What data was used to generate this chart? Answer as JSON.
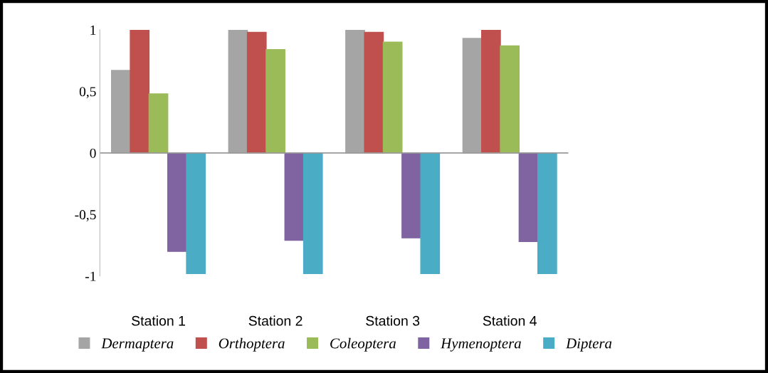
{
  "chart_data": {
    "type": "bar",
    "categories": [
      "Station 1",
      "Station 2",
      "Station 3",
      "Station 4"
    ],
    "series": [
      {
        "name": "Dermaptera",
        "color": "#a5a5a5",
        "values": [
          0.67,
          1.0,
          1.0,
          0.93
        ]
      },
      {
        "name": "Orthoptera",
        "color": "#c0504d",
        "values": [
          1.0,
          0.98,
          0.98,
          1.0
        ]
      },
      {
        "name": "Coleoptera",
        "color": "#9bbb59",
        "values": [
          0.48,
          0.84,
          0.9,
          0.87
        ]
      },
      {
        "name": "Hymenoptera",
        "color": "#8064a2",
        "values": [
          -0.8,
          -0.71,
          -0.69,
          -0.72
        ]
      },
      {
        "name": "Diptera",
        "color": "#4bacc6",
        "values": [
          -0.98,
          -0.98,
          -0.98,
          -0.98
        ]
      }
    ],
    "ylim": [
      -1,
      1
    ],
    "yticks": [
      {
        "value": -1,
        "label": "-1"
      },
      {
        "value": -0.5,
        "label": "-0,5"
      },
      {
        "value": 0,
        "label": "0"
      },
      {
        "value": 0.5,
        "label": "0,5"
      },
      {
        "value": 1,
        "label": "1"
      }
    ],
    "grid": false,
    "ref_lines": [
      {
        "axis": "y",
        "value": 0,
        "color": "#999999"
      }
    ],
    "legend": "bottom"
  }
}
